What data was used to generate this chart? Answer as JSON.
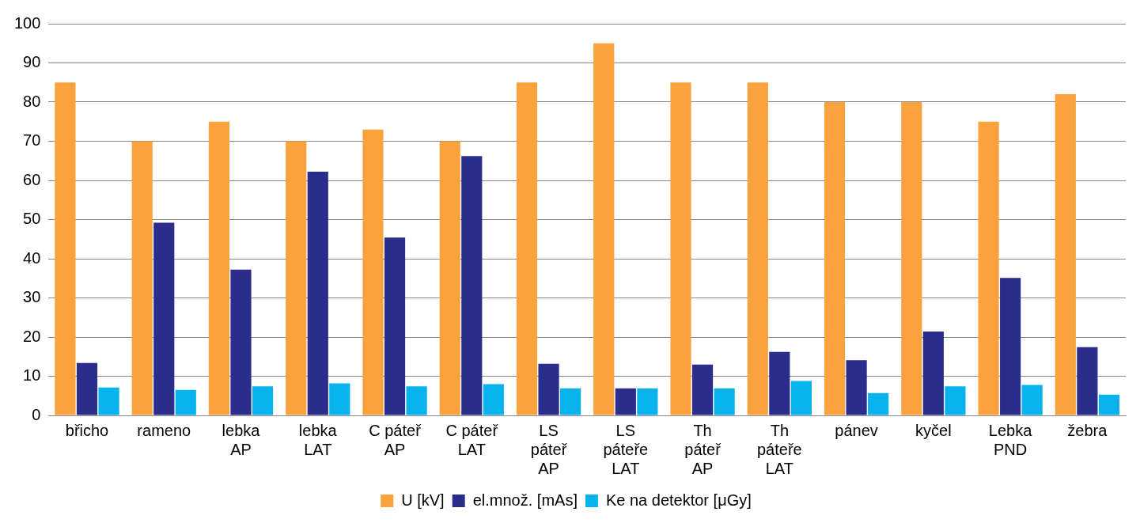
{
  "chart_data": {
    "type": "bar",
    "categories": [
      "břicho",
      "rameno",
      "lebka\nAP",
      "lebka\nLAT",
      "C páteř\nAP",
      "C páteř\nLAT",
      "LS\npáteř\nAP",
      "LS\npáteře\nLAT",
      "Th\npáteř\nAP",
      "Th\npáteře\nLAT",
      "pánev",
      "kyčel",
      "Lebka\nPND",
      "žebra"
    ],
    "series": [
      {
        "name": "U [kV]",
        "color": "#f9a23e",
        "values": [
          85,
          70,
          75,
          70,
          73,
          70,
          85,
          95,
          85,
          85,
          80,
          80,
          75,
          82
        ]
      },
      {
        "name": "el.množ. [mAs]",
        "color": "#2b2d8c",
        "values": [
          13.4,
          49.2,
          37.2,
          62.2,
          45.4,
          66.2,
          13.2,
          6.9,
          13,
          16.2,
          14.1,
          21.4,
          35.1,
          17.4
        ]
      },
      {
        "name": "Ke na detektor [μGy]",
        "color": "#08b2ec",
        "values": [
          7.1,
          6.5,
          7.4,
          8.2,
          7.4,
          8,
          6.9,
          6.9,
          6.9,
          8.8,
          5.7,
          7.4,
          7.8,
          5.3
        ]
      }
    ],
    "ylim": [
      0,
      100
    ],
    "yticks": [
      0,
      10,
      20,
      30,
      40,
      50,
      60,
      70,
      80,
      90,
      100
    ],
    "grid": "y",
    "legend": "bottom"
  }
}
